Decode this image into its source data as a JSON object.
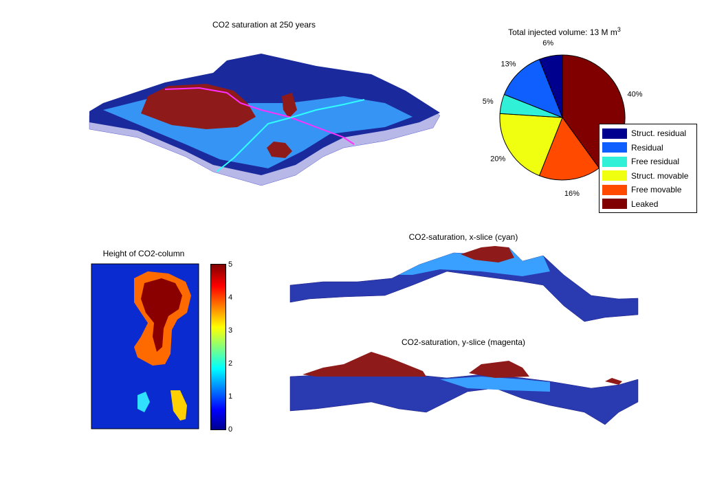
{
  "panels": {
    "saturation_3d": {
      "title": "CO2 saturation at 250 years"
    },
    "column_height": {
      "title": "Height of CO2-column"
    },
    "x_slice": {
      "title": "CO2-saturation, x-slice (cyan)"
    },
    "y_slice": {
      "title": "CO2-saturation, y-slice (magenta)"
    }
  },
  "pie": {
    "title_prefix": "Total injected volume: 13 M m",
    "title_sup": "3"
  },
  "colorbar": {
    "ticks": [
      "0",
      "1",
      "2",
      "3",
      "4",
      "5"
    ]
  },
  "chart_data": [
    {
      "type": "pie",
      "title": "Total injected volume: 13 M m3",
      "legend_position": "bottom-right",
      "categories": [
        "Struct. residual",
        "Residual",
        "Free residual",
        "Struct. movable",
        "Free movable",
        "Leaked"
      ],
      "values": [
        6,
        13,
        5,
        20,
        16,
        40
      ],
      "labels": [
        "6%",
        "13%",
        "5%",
        "20%",
        "16%",
        "40%"
      ],
      "colors": [
        "#00008f",
        "#0f5fff",
        "#30f0d8",
        "#f0ff0f",
        "#ff4a00",
        "#800000"
      ]
    },
    {
      "type": "heatmap",
      "title": "Height of CO2-column",
      "colorbar_range": [
        0,
        5
      ],
      "colormap": "jet"
    },
    {
      "type": "area",
      "title": "CO2-saturation, x-slice (cyan)"
    },
    {
      "type": "area",
      "title": "CO2-saturation, y-slice (magenta)"
    }
  ],
  "colors": {
    "deep_blue": "#1a2a9c",
    "light_blue": "#3aa0ff",
    "leaked_red": "#8f1a1a",
    "side_wall": "#b8b8e8"
  }
}
